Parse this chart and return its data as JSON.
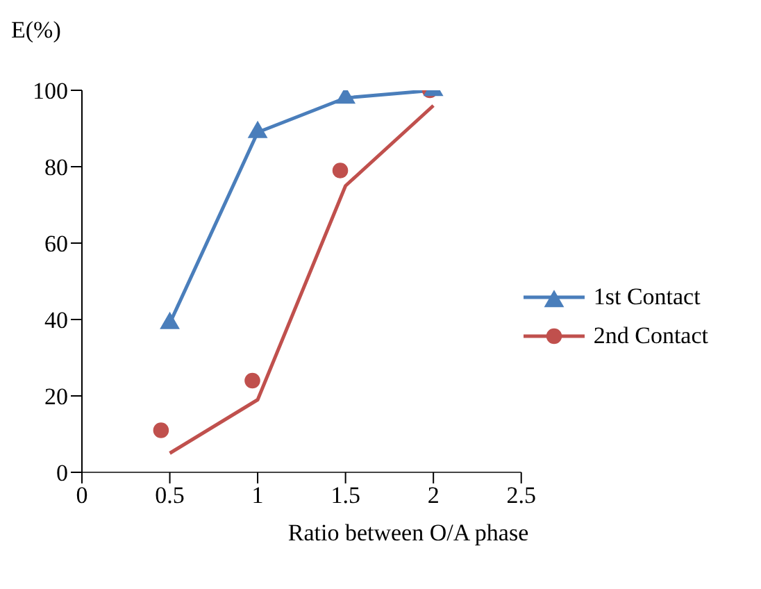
{
  "chart_data": {
    "type": "line",
    "ylabel": "E(%)",
    "xlabel": "Ratio between O/A phase",
    "xlim": [
      0,
      2.5
    ],
    "xticks": [
      0,
      0.5,
      1,
      1.5,
      2,
      2.5
    ],
    "ylim": [
      0,
      100
    ],
    "yticks": [
      0,
      20,
      40,
      60,
      80,
      100
    ],
    "grid": false,
    "legend": "right",
    "series": [
      {
        "name": "1st Contact",
        "color": "#4a7ebb",
        "marker": "triangle",
        "x": [
          0.5,
          1,
          1.5,
          2
        ],
        "values": [
          39,
          89,
          98,
          100
        ]
      },
      {
        "name": "2nd Contact",
        "type": "scatter",
        "color": "#c0504d",
        "marker": "circle",
        "x": [
          0.45,
          0.97,
          1.47,
          1.98
        ],
        "values": [
          11,
          24,
          79,
          100
        ]
      },
      {
        "color": "#c0504d",
        "marker": "none",
        "x": [
          0.5,
          1,
          1.5,
          2
        ],
        "values": [
          5,
          19,
          75,
          96
        ]
      }
    ]
  }
}
